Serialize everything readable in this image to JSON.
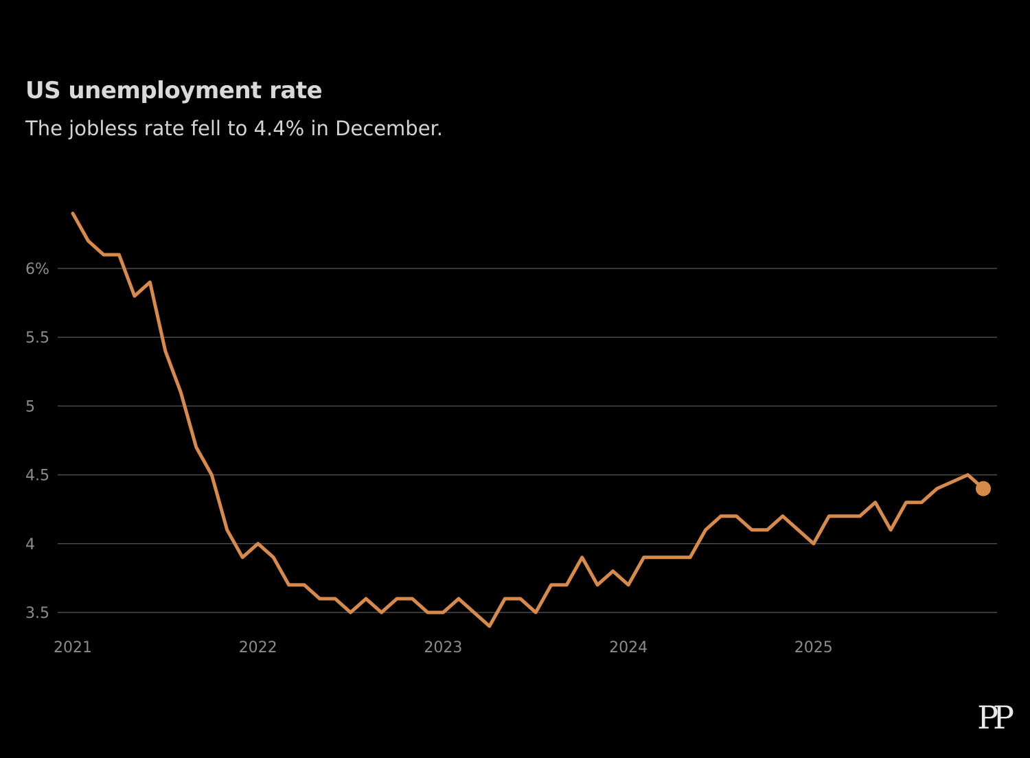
{
  "header": {
    "title": "US unemployment rate",
    "subtitle": "The jobless rate fell to 4.4% in December."
  },
  "logo": {
    "text": "PP"
  },
  "colors": {
    "background": "#000000",
    "line": "#d88a4a",
    "grid": "#4a4a4a",
    "tick": "#8c8c8c"
  },
  "chart_data": {
    "type": "line",
    "title": "US unemployment rate",
    "subtitle": "The jobless rate fell to 4.4% in December.",
    "xlabel": "",
    "ylabel": "",
    "x_start": "2021-01",
    "x_end": "2025-12",
    "xlim": [
      0,
      59
    ],
    "ylim": [
      3.4,
      6.4
    ],
    "y_ticks": [
      {
        "value": 3.5,
        "label": "3.5"
      },
      {
        "value": 4,
        "label": "4"
      },
      {
        "value": 4.5,
        "label": "4.5"
      },
      {
        "value": 5,
        "label": "5"
      },
      {
        "value": 5.5,
        "label": "5.5"
      },
      {
        "value": 6,
        "label": "6%"
      }
    ],
    "x_ticks": [
      {
        "value": 0,
        "label": "2021"
      },
      {
        "value": 12,
        "label": "2022"
      },
      {
        "value": 24,
        "label": "2023"
      },
      {
        "value": 36,
        "label": "2024"
      },
      {
        "value": 48,
        "label": "2025"
      }
    ],
    "grid": true,
    "legend": "none",
    "series": [
      {
        "name": "Unemployment rate",
        "values": [
          6.4,
          6.2,
          6.1,
          6.1,
          5.8,
          5.9,
          5.4,
          5.1,
          4.7,
          4.5,
          4.1,
          3.9,
          4.0,
          3.9,
          3.7,
          3.7,
          3.6,
          3.6,
          3.5,
          3.6,
          3.5,
          3.6,
          3.6,
          3.5,
          3.5,
          3.6,
          3.5,
          3.4,
          3.6,
          3.6,
          3.5,
          3.7,
          3.7,
          3.9,
          3.7,
          3.8,
          3.7,
          3.9,
          3.9,
          3.9,
          3.9,
          4.1,
          4.2,
          4.2,
          4.1,
          4.1,
          4.2,
          4.1,
          4.0,
          4.2,
          4.2,
          4.2,
          4.3,
          4.1,
          4.3,
          4.3,
          4.4,
          4.45,
          4.5,
          4.4
        ],
        "endpoint_marker": true
      }
    ]
  }
}
